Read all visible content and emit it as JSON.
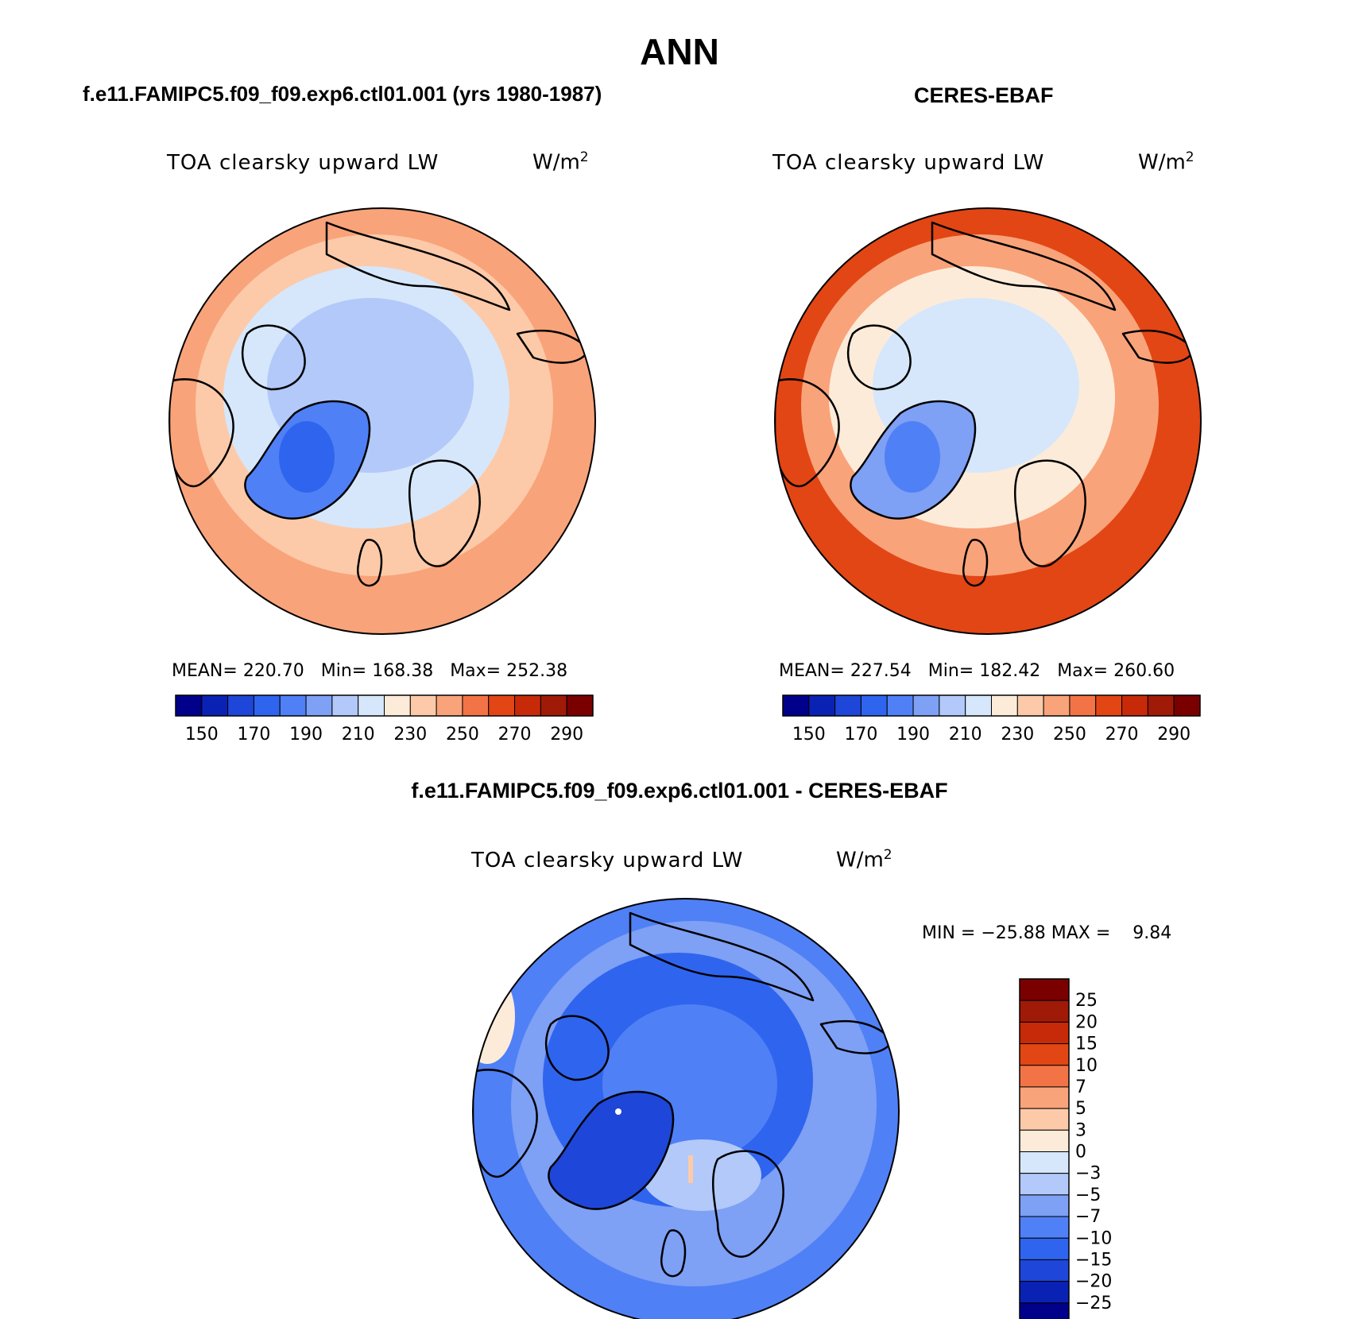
{
  "season": "ANN",
  "colors": {
    "seq": [
      "#00008b",
      "#0a22b4",
      "#1e46d8",
      "#2f64ee",
      "#5080f5",
      "#7ea0f5",
      "#b2c9f9",
      "#d6e7fb",
      "#fdebd9",
      "#fccaa9",
      "#f9a37a",
      "#f27446",
      "#e24615",
      "#c72a08",
      "#a01a08",
      "#7a0000"
    ],
    "diff": [
      "#00008b",
      "#0a22b4",
      "#1e46d8",
      "#2f64ee",
      "#5080f5",
      "#7ea0f5",
      "#b2c9f9",
      "#d6e7fb",
      "#fdebd9",
      "#fccaa9",
      "#f9a37a",
      "#f27446",
      "#e24615",
      "#c72a08",
      "#a01a08",
      "#7a0000"
    ],
    "coast": "#000000"
  },
  "panels": [
    {
      "header": "f.e11.FAMIPC5.f09_f09.exp6.ctl01.001 (yrs 1980-1987)",
      "variable": "TOA clearsky upward LW",
      "units_base": "W/m",
      "units_exp": "2",
      "stats": "MEAN= 220.70   Min= 168.38   Max= 252.38",
      "colorbar_labels": [
        "150",
        "170",
        "190",
        "210",
        "230",
        "250",
        "270",
        "290"
      ],
      "field": {
        "greenland": 185,
        "basin": 205,
        "mid": 218,
        "outer": 248
      }
    },
    {
      "header": "CERES-EBAF",
      "variable": "TOA clearsky upward LW",
      "units_base": "W/m",
      "units_exp": "2",
      "stats": "MEAN= 227.54   Min= 182.42   Max= 260.60",
      "colorbar_labels": [
        "150",
        "170",
        "190",
        "210",
        "230",
        "250",
        "270",
        "290"
      ],
      "field": {
        "greenland": 195,
        "basin": 212,
        "mid": 225,
        "outer": 262
      }
    }
  ],
  "difference": {
    "header": "f.e11.FAMIPC5.f09_f09.exp6.ctl01.001 - CERES-EBAF",
    "variable": "TOA clearsky upward LW",
    "units_base": "W/m",
    "units_exp": "2",
    "minmax": "MIN = −25.88 MAX =    9.84",
    "colorbar_labels": [
      "25",
      "20",
      "15",
      "10",
      "7",
      "5",
      "3",
      "0",
      "−3",
      "−5",
      "−7",
      "−10",
      "−15",
      "−20",
      "−25"
    ]
  }
}
